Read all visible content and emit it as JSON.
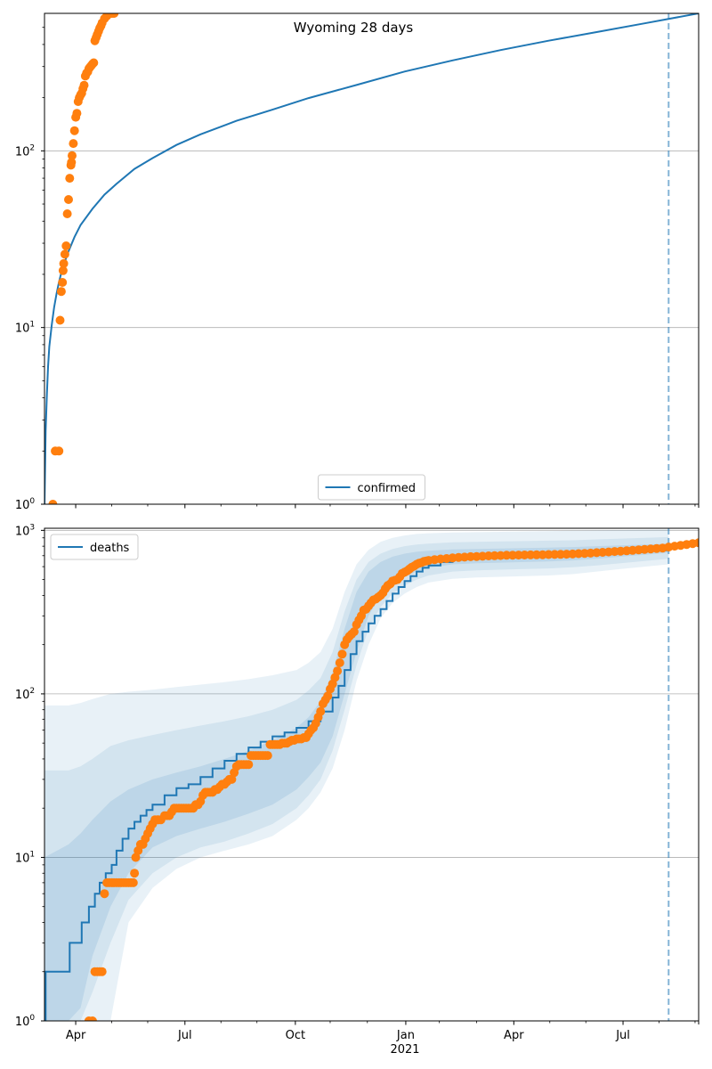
{
  "chart_data": [
    {
      "type": "line",
      "title": "Wyoming 28 days",
      "yscale": "log",
      "ylim": [
        1,
        600
      ],
      "xlim_days": [
        0,
        545
      ],
      "x_origin_date": "2020-03-10",
      "vline_day": 520,
      "y_ticks": [
        {
          "value": 1,
          "base": "10",
          "exp": "0"
        },
        {
          "value": 10,
          "base": "10",
          "exp": "1"
        },
        {
          "value": 100,
          "base": "10",
          "exp": "2"
        }
      ],
      "x_ticks": [
        {
          "day": 26,
          "label": "Apr"
        },
        {
          "day": 117,
          "label": "Jul"
        },
        {
          "day": 209,
          "label": "Oct"
        },
        {
          "day": 301,
          "label": "Jan"
        },
        {
          "day": 391,
          "label": "Apr"
        },
        {
          "day": 482,
          "label": "Jul"
        }
      ],
      "legend": {
        "label": "confirmed",
        "position": "lower center"
      },
      "series": [
        {
          "name": "confirmed",
          "kind": "line",
          "color": "#1f77b4",
          "x": [
            0,
            1,
            2,
            3,
            4,
            6,
            8,
            10,
            12,
            15,
            20,
            25,
            30,
            40,
            50,
            60,
            75,
            90,
            110,
            130,
            160,
            190,
            220,
            260,
            300,
            340,
            380,
            420,
            460,
            500,
            545
          ],
          "y": [
            1,
            2.6,
            4.2,
            6,
            7.8,
            10.3,
            13,
            15.5,
            18,
            21.7,
            27,
            32.5,
            38,
            47,
            56.5,
            65,
            79,
            91,
            108,
            124,
            148,
            171,
            199,
            236,
            281,
            325,
            372,
            420,
            470,
            527,
            600
          ]
        },
        {
          "name": "observed",
          "kind": "points",
          "color": "#ff7f0e",
          "x": [
            7,
            9,
            12,
            13,
            14,
            15,
            15.5,
            16,
            17,
            18,
            19,
            20,
            21,
            22,
            22.5,
            23,
            24,
            25,
            26,
            27,
            28,
            29,
            30,
            31,
            32,
            33,
            34,
            35,
            36,
            37,
            38,
            39,
            40,
            41,
            42,
            43,
            44,
            45,
            46,
            47,
            48,
            50,
            52,
            54,
            56,
            58
          ],
          "y": [
            1,
            2,
            2,
            11,
            16,
            18,
            21,
            23,
            26,
            29,
            44,
            53,
            70,
            83,
            86,
            94,
            110,
            130,
            155,
            163,
            190,
            200,
            207,
            212,
            225,
            235,
            265,
            275,
            280,
            292,
            298,
            304,
            310,
            315,
            420,
            438,
            455,
            475,
            495,
            510,
            530,
            560,
            580,
            600,
            600,
            600
          ]
        }
      ]
    },
    {
      "type": "line",
      "title": "",
      "yscale": "log",
      "ylim": [
        1,
        1030
      ],
      "xlim_days": [
        0,
        545
      ],
      "vline_day": 520,
      "year_label": "2021",
      "y_ticks": [
        {
          "value": 1,
          "base": "10",
          "exp": "0"
        },
        {
          "value": 10,
          "base": "10",
          "exp": "1"
        },
        {
          "value": 100,
          "base": "10",
          "exp": "2"
        },
        {
          "value": 1000,
          "base": "10",
          "exp": "3"
        }
      ],
      "x_ticks": [
        {
          "day": 26,
          "label": "Apr"
        },
        {
          "day": 117,
          "label": "Jul"
        },
        {
          "day": 209,
          "label": "Oct"
        },
        {
          "day": 301,
          "label": "Jan"
        },
        {
          "day": 391,
          "label": "Apr"
        },
        {
          "day": 482,
          "label": "Jul"
        }
      ],
      "legend": {
        "label": "deaths",
        "position": "upper left"
      },
      "bands": {
        "color": "#1f77b4",
        "x": [
          0,
          20,
          30,
          40,
          55,
          70,
          90,
          110,
          130,
          150,
          170,
          190,
          210,
          220,
          230,
          240,
          250,
          260,
          270,
          280,
          290,
          300,
          310,
          320,
          340,
          360,
          380,
          400,
          420,
          440,
          460,
          480,
          500,
          520
        ],
        "outer_upper": [
          85,
          85,
          88,
          93,
          100,
          103,
          106,
          110,
          114,
          118,
          123,
          130,
          140,
          155,
          180,
          250,
          420,
          620,
          760,
          850,
          900,
          930,
          950,
          960,
          970,
          975,
          980,
          985,
          990,
          995,
          1000,
          1005,
          1010,
          1015
        ],
        "outer_lower": [
          1,
          1,
          1,
          1,
          1,
          4,
          6.5,
          8.5,
          10,
          11,
          12,
          13.5,
          17,
          20,
          25,
          35,
          60,
          120,
          200,
          290,
          360,
          410,
          450,
          480,
          505,
          515,
          520,
          525,
          530,
          540,
          560,
          580,
          600,
          620
        ],
        "mid_upper": [
          34,
          34,
          36,
          40,
          48,
          52,
          56,
          60,
          64,
          68,
          73,
          80,
          92,
          105,
          125,
          180,
          320,
          500,
          640,
          720,
          770,
          800,
          820,
          830,
          845,
          850,
          855,
          860,
          865,
          870,
          880,
          890,
          900,
          910
        ],
        "mid_lower": [
          1,
          1,
          1,
          1.5,
          3,
          5.5,
          8,
          10,
          11.5,
          12.5,
          14,
          16,
          20,
          24,
          30,
          45,
          80,
          150,
          250,
          340,
          410,
          460,
          500,
          530,
          560,
          570,
          575,
          580,
          585,
          595,
          610,
          630,
          650,
          670
        ],
        "inner_upper": [
          10,
          12,
          14,
          17,
          22,
          26,
          30,
          33,
          36,
          40,
          45,
          52,
          62,
          72,
          90,
          135,
          250,
          420,
          560,
          640,
          690,
          720,
          740,
          750,
          765,
          770,
          775,
          780,
          785,
          790,
          800,
          810,
          820,
          830
        ],
        "inner_lower": [
          1,
          1,
          1.2,
          2.5,
          5,
          8,
          11.5,
          13.5,
          15,
          16.5,
          18.5,
          21,
          26,
          31,
          38,
          55,
          100,
          180,
          300,
          400,
          470,
          520,
          560,
          590,
          620,
          630,
          635,
          640,
          645,
          655,
          670,
          690,
          710,
          730
        ]
      },
      "series": [
        {
          "name": "deaths",
          "kind": "step",
          "color": "#1f77b4",
          "x": [
            0,
            1,
            20,
            21,
            30,
            31,
            36,
            37,
            41,
            42,
            45,
            46,
            50,
            51,
            55,
            56,
            60,
            65,
            70,
            75,
            80,
            85,
            90,
            100,
            110,
            120,
            130,
            140,
            150,
            160,
            170,
            180,
            190,
            200,
            210,
            220,
            230,
            240,
            245,
            250,
            255,
            260,
            265,
            270,
            275,
            280,
            285,
            290,
            295,
            300,
            305,
            310,
            315,
            320,
            330,
            340,
            350,
            360,
            380,
            400,
            420,
            440,
            460,
            480,
            500,
            520
          ],
          "y": [
            1,
            2,
            2,
            3,
            3,
            4,
            4,
            5,
            5,
            6,
            6,
            7,
            7,
            8,
            8,
            9,
            11,
            13,
            15,
            16.5,
            18,
            19.5,
            21,
            24,
            26.5,
            28,
            31,
            35,
            39,
            43,
            47,
            51,
            55,
            58,
            62,
            68,
            78,
            95,
            112,
            140,
            175,
            210,
            240,
            270,
            300,
            330,
            370,
            410,
            450,
            490,
            525,
            560,
            590,
            610,
            640,
            660,
            675,
            685,
            695,
            700,
            705,
            710,
            720,
            735,
            755,
            780
          ]
        },
        {
          "name": "observed",
          "kind": "points",
          "color": "#ff7f0e",
          "x": [
            37,
            40,
            42,
            44,
            46,
            48,
            50,
            52,
            54,
            56,
            58,
            60,
            62,
            64,
            66,
            68,
            70,
            72,
            74,
            75,
            76,
            78,
            80,
            82,
            84,
            86,
            88,
            90,
            92,
            94,
            95,
            97,
            100,
            102,
            104,
            106,
            108,
            110,
            112,
            114,
            116,
            118,
            120,
            122,
            124,
            126,
            128,
            130,
            132,
            134,
            136,
            138,
            140,
            142,
            144,
            146,
            148,
            150,
            152,
            154,
            156,
            158,
            160,
            162,
            164,
            166,
            168,
            170,
            172,
            174,
            176,
            178,
            180,
            182,
            184,
            186,
            188,
            190,
            192,
            194,
            196,
            198,
            200,
            202,
            204,
            206,
            208,
            210,
            212,
            214,
            216,
            218,
            220,
            222,
            224,
            226,
            228,
            230,
            232,
            234,
            236,
            238,
            240,
            242,
            244,
            246,
            248,
            250,
            252,
            254,
            256,
            258,
            260,
            262,
            264,
            266,
            268,
            270,
            272,
            274,
            276,
            278,
            280,
            282,
            284,
            286,
            288,
            290,
            292,
            294,
            296,
            298,
            300,
            302,
            304,
            306,
            308,
            310,
            312,
            314,
            316,
            318,
            320,
            325,
            330,
            335,
            340,
            345,
            350,
            355,
            360,
            365,
            370,
            375,
            380,
            385,
            390,
            395,
            400,
            405,
            410,
            415,
            420,
            425,
            430,
            435,
            440,
            445,
            450,
            455,
            460,
            465,
            470,
            475,
            480,
            485,
            490,
            495,
            500,
            505,
            510,
            515,
            520,
            525,
            530,
            535,
            540,
            545
          ],
          "y": [
            1,
            1,
            2,
            2,
            2,
            2,
            6,
            7,
            7,
            7,
            7,
            7,
            7,
            7,
            7,
            7,
            7,
            7,
            7,
            8,
            10,
            11,
            12,
            12,
            13,
            14,
            15,
            16,
            17,
            17,
            17,
            17,
            18,
            18,
            18,
            19,
            20,
            20,
            20,
            20,
            20,
            20,
            20,
            20,
            20,
            21,
            21,
            22,
            24,
            25,
            25,
            25,
            25,
            26,
            26,
            27,
            28,
            28,
            29,
            30,
            30,
            33,
            36,
            37,
            37,
            37,
            37,
            37,
            42,
            42,
            42,
            42,
            42,
            42,
            42,
            42,
            49,
            49,
            49,
            49,
            49,
            50,
            50,
            50,
            51,
            52,
            52,
            53,
            53,
            53,
            54,
            54,
            57,
            60,
            62,
            66,
            72,
            78,
            87,
            92,
            97,
            107,
            115,
            126,
            138,
            155,
            175,
            200,
            215,
            225,
            232,
            240,
            265,
            283,
            300,
            325,
            330,
            345,
            360,
            375,
            380,
            390,
            400,
            415,
            440,
            460,
            470,
            490,
            495,
            500,
            520,
            545,
            555,
            565,
            580,
            595,
            605,
            620,
            630,
            635,
            645,
            650,
            655,
            662,
            668,
            672,
            678,
            683,
            686,
            690,
            692,
            695,
            698,
            700,
            702,
            704,
            705,
            706,
            707,
            708,
            709,
            710,
            711,
            712,
            713,
            715,
            717,
            720,
            723,
            726,
            730,
            734,
            738,
            742,
            746,
            750,
            755,
            760,
            765,
            770,
            775,
            780,
            790,
            800,
            810,
            820,
            830,
            840
          ]
        }
      ]
    }
  ]
}
